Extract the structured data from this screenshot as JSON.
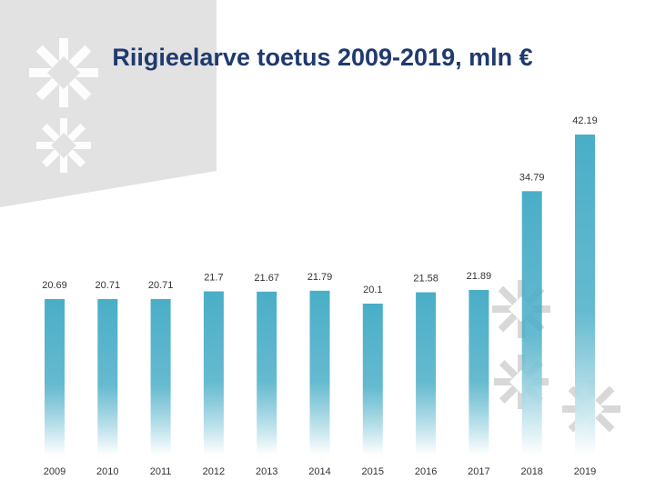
{
  "colors": {
    "accent": "#4aaec7",
    "bar_fade": "#ffffff",
    "title": "#1f3a6e",
    "panel": "#e2e2e2",
    "snowflake": "#d4d4d4",
    "label": "#333333"
  },
  "chart_data": {
    "type": "bar",
    "title": "Riigieelarve toetus 2009-2019, mln €",
    "xlabel": "",
    "ylabel": "",
    "categories": [
      "2009",
      "2010",
      "2011",
      "2012",
      "2013",
      "2014",
      "2015",
      "2016",
      "2017",
      "2018",
      "2019"
    ],
    "values": [
      20.69,
      20.71,
      20.71,
      21.7,
      21.67,
      21.79,
      20.1,
      21.58,
      21.89,
      34.79,
      42.19
    ],
    "value_labels": [
      "20.69",
      "20.71",
      "20.71",
      "21.7",
      "21.67",
      "21.79",
      "20.1",
      "21.58",
      "21.89",
      "34.79",
      "42.19"
    ],
    "ylim": [
      0,
      42.19
    ],
    "grid": false,
    "legend": "none"
  }
}
